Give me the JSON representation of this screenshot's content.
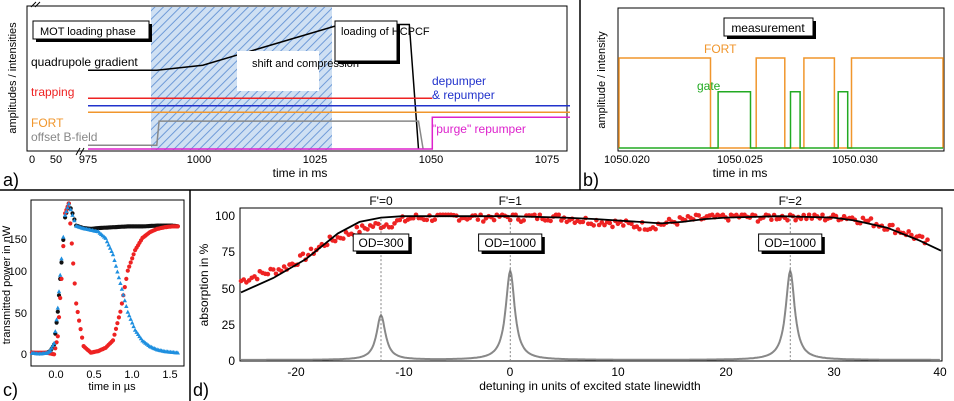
{
  "chart_data": [
    {
      "panel": "a)",
      "type": "line",
      "xlabel": "time in ms",
      "ylabel": "amplitudes / intensities",
      "xlim": [
        950,
        1080
      ],
      "x_break": "axis break between 50 and 975",
      "xticks": [
        "0",
        "50",
        "975",
        "1000",
        "1025",
        "1050",
        "1075"
      ],
      "phase_labels": [
        "MOT loading phase",
        "shift and compression",
        "loading of HCPCF"
      ],
      "shaded_region": [
        990,
        1030
      ],
      "series": [
        {
          "name": "quadrupole gradient",
          "color": "#000000",
          "x": [
            950,
            990,
            1000,
            1030,
            1045,
            1047
          ],
          "y": [
            0.62,
            0.62,
            0.66,
            0.98,
            0.98,
            0.0
          ]
        },
        {
          "name": "trapping",
          "color": "#ee2222",
          "x": [
            950,
            1050
          ],
          "y": [
            0.4,
            0.4
          ]
        },
        {
          "name": "depumper & repumper",
          "color": "#2233cc",
          "x": [
            950,
            1080
          ],
          "y": [
            0.34,
            0.34
          ]
        },
        {
          "name": "FORT",
          "color": "#f0962c",
          "x": [
            950,
            1080
          ],
          "y": [
            0.29,
            0.29
          ]
        },
        {
          "name": "offset B-field",
          "color": "#888888",
          "x": [
            950,
            990,
            990.5,
            1047,
            1048
          ],
          "y": [
            0.03,
            0.03,
            0.22,
            0.22,
            0.0
          ]
        },
        {
          "name": "\"purge\" repumper",
          "color": "#dd22cc",
          "x": [
            950,
            1050,
            1050,
            1080
          ],
          "y": [
            0.0,
            0.0,
            0.25,
            0.25
          ]
        }
      ]
    },
    {
      "panel": "b)",
      "type": "line",
      "xlabel": "time in ms",
      "ylabel": "amplitude / intensity",
      "xlim": [
        1050.0175,
        1050.0345
      ],
      "xticks": [
        "1050.020",
        "1050.025",
        "1050.030"
      ],
      "annotation": "measurement",
      "series": [
        {
          "name": "FORT",
          "color": "#f0962c",
          "levels": [
            0.0,
            0.72
          ],
          "on_intervals": [
            [
              1050.0175,
              1050.0223
            ],
            [
              1050.0247,
              1050.0262
            ],
            [
              1050.0272,
              1050.0288
            ],
            [
              1050.0297,
              1050.0345
            ]
          ]
        },
        {
          "name": "gate",
          "color": "#22aa22",
          "levels": [
            0.0,
            0.45
          ],
          "on_intervals": [
            [
              1050.0227,
              1050.0244
            ],
            [
              1050.0265,
              1050.027
            ],
            [
              1050.029,
              1050.0295
            ]
          ]
        }
      ]
    },
    {
      "panel": "c)",
      "type": "scatter",
      "xlabel": "time in µs",
      "ylabel": "transmitted power in nW",
      "xlim": [
        -0.3,
        1.75
      ],
      "ylim": [
        -15,
        185
      ],
      "xticks": [
        "0.0",
        "0.5",
        "1.0",
        "1.5"
      ],
      "yticks": [
        "0",
        "50",
        "100",
        "150"
      ],
      "series": [
        {
          "name": "",
          "color": "#111111",
          "x": [
            -0.3,
            -0.2,
            -0.1,
            -0.05,
            0.0,
            0.05,
            0.1,
            0.15,
            0.2,
            0.25,
            0.3,
            0.4,
            0.5,
            0.6,
            0.8,
            1.0,
            1.2,
            1.4,
            1.6,
            1.7
          ],
          "y": [
            0,
            -1,
            0,
            2,
            10,
            50,
            110,
            165,
            182,
            170,
            155,
            152,
            151,
            152,
            153,
            154,
            154,
            155,
            155,
            154
          ]
        },
        {
          "name": "",
          "color": "#ee2222",
          "x": [
            -0.3,
            -0.1,
            0.0,
            0.05,
            0.1,
            0.15,
            0.2,
            0.3,
            0.4,
            0.5,
            0.6,
            0.7,
            0.8,
            0.9,
            1.0,
            1.1,
            1.2,
            1.3,
            1.4,
            1.5,
            1.6,
            1.7
          ],
          "y": [
            0,
            0,
            -2,
            20,
            90,
            170,
            182,
            60,
            8,
            0,
            2,
            6,
            15,
            50,
            100,
            125,
            140,
            147,
            151,
            153,
            154,
            154
          ]
        },
        {
          "name": "",
          "color": "#1e8fdf",
          "x": [
            -0.3,
            -0.2,
            -0.1,
            -0.05,
            0.0,
            0.05,
            0.1,
            0.15,
            0.2,
            0.25,
            0.3,
            0.4,
            0.5,
            0.6,
            0.7,
            0.8,
            0.9,
            1.0,
            1.1,
            1.2,
            1.3,
            1.4,
            1.5,
            1.6,
            1.7
          ],
          "y": [
            0,
            -1,
            0,
            3,
            12,
            55,
            115,
            168,
            182,
            168,
            155,
            152,
            150,
            148,
            140,
            120,
            85,
            50,
            28,
            15,
            8,
            4,
            2,
            1,
            0
          ]
        }
      ]
    },
    {
      "panel": "d)",
      "type": "line",
      "xlabel": "detuning in units of excited state linewidth",
      "ylabel": "absorption in %",
      "xlim": [
        -25,
        40
      ],
      "ylim": [
        0,
        105
      ],
      "xticks": [
        "-20",
        "-10",
        "0",
        "10",
        "20",
        "30",
        "40"
      ],
      "yticks": [
        "0",
        "25",
        "50",
        "75",
        "100"
      ],
      "annotations": [
        {
          "label": "F'=0",
          "x": -12
        },
        {
          "label": "F'=1",
          "x": 0
        },
        {
          "label": "F'=2",
          "x": 26
        },
        {
          "label": "OD=300",
          "x": -12
        },
        {
          "label": "OD=1000",
          "x": 0
        },
        {
          "label": "OD=1000",
          "x": 26
        }
      ],
      "series": [
        {
          "name": "",
          "color": "#ee2222",
          "style": "markers",
          "x": [
            -25,
            -23,
            -21,
            -19,
            -17,
            -15,
            -13,
            -11,
            -9,
            -7,
            -5,
            -3,
            -1,
            1,
            3,
            5,
            7,
            9,
            11,
            13,
            15,
            17,
            19,
            21,
            23,
            25,
            27,
            29,
            31,
            33,
            35,
            37,
            39
          ],
          "y": [
            55,
            60,
            64,
            72,
            82,
            88,
            93,
            95,
            99,
            99,
            100,
            99,
            100,
            99,
            100,
            99,
            97,
            96,
            94,
            93,
            96,
            98,
            99,
            100,
            99,
            100,
            100,
            99,
            100,
            97,
            93,
            88,
            80
          ]
        },
        {
          "name": "",
          "color": "#000000",
          "style": "line",
          "x": [
            -25,
            -22,
            -19,
            -16,
            -14,
            -12,
            -10,
            -5,
            0,
            5,
            8,
            12,
            14,
            16,
            18,
            20,
            25,
            30,
            32,
            35,
            38,
            40
          ],
          "y": [
            47,
            57,
            70,
            88,
            96,
            99,
            100,
            100,
            100,
            99,
            98,
            96,
            95,
            96,
            98,
            99,
            100,
            99,
            97,
            92,
            83,
            76
          ]
        },
        {
          "name": "",
          "color": "#888888",
          "style": "lorentzian",
          "peaks": [
            {
              "x": -12,
              "height": 31,
              "width": 0.5
            },
            {
              "x": 0,
              "height": 62,
              "width": 0.5
            },
            {
              "x": 26,
              "height": 62,
              "width": 0.5
            }
          ]
        }
      ]
    }
  ],
  "panel_labels": {
    "a": "a)",
    "b": "b)",
    "c": "c)",
    "d": "d)"
  },
  "colors": {
    "frame": "#000000",
    "shade": "#7fa8dc",
    "gray": "#888888"
  }
}
